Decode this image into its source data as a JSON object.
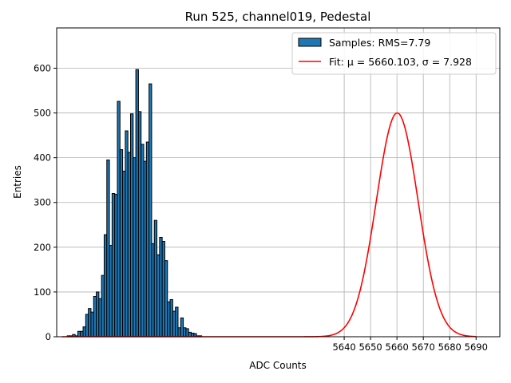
{
  "chart_data": {
    "type": "bar",
    "title": "Run 525, channel019, Pedestal",
    "xlabel": "ADC Counts",
    "ylabel": "Entries",
    "xlim": [
      5531,
      5699
    ],
    "ylim": [
      0,
      690
    ],
    "xticks": [
      5640,
      5650,
      5660,
      5670,
      5680,
      5690
    ],
    "yticks": [
      0,
      100,
      200,
      300,
      400,
      500,
      600
    ],
    "grid": true,
    "legend_position": "top-right",
    "bin_width": 1,
    "bin_start": 5535,
    "histogram_values": [
      2,
      2,
      5,
      2,
      12,
      12,
      22,
      50,
      63,
      55,
      90,
      100,
      85,
      137,
      228,
      395,
      204,
      320,
      318,
      526,
      418,
      370,
      460,
      412,
      498,
      400,
      597,
      503,
      430,
      392,
      435,
      565,
      208,
      260,
      183,
      222,
      213,
      170,
      78,
      83,
      57,
      66,
      20,
      42,
      20,
      18,
      10,
      8,
      7,
      2,
      2
    ],
    "series": [
      {
        "name": "Samples: RMS=7.79",
        "kind": "histogram",
        "color": "#1f77b4"
      },
      {
        "name": "Fit: μ = 5660.103, σ = 7.928",
        "kind": "gaussian",
        "color": "#ff0000",
        "mu": 5660.103,
        "sigma": 7.928,
        "amplitude": 500,
        "x_range": [
          5533,
          5690
        ]
      }
    ]
  }
}
